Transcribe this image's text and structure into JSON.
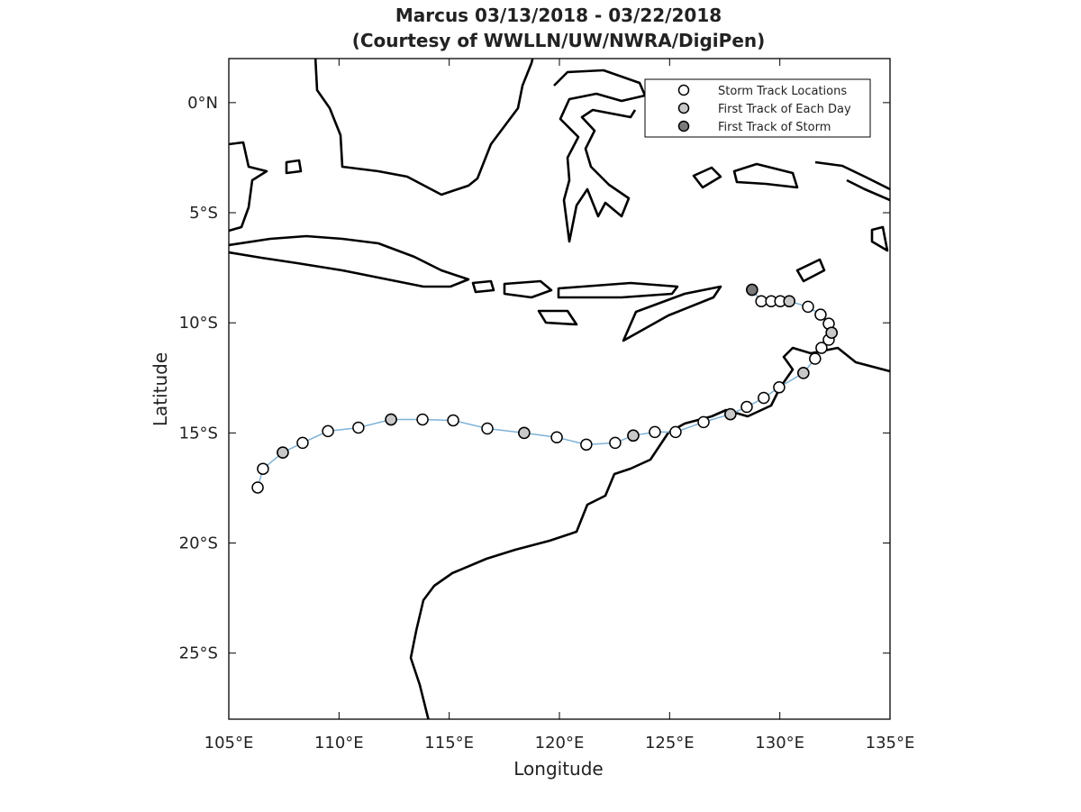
{
  "chart_data": {
    "type": "line",
    "title": "Marcus 03/13/2018 - 03/22/2018",
    "subtitle": "(Courtesy of WWLLN/UW/NWRA/DigiPen)",
    "x_label": "Longitude",
    "y_label": "Latitude",
    "xlim": [
      105,
      135
    ],
    "ylim": [
      -28,
      2
    ],
    "xticks": [
      {
        "value": 105,
        "label": "105°E"
      },
      {
        "value": 110,
        "label": "110°E"
      },
      {
        "value": 115,
        "label": "115°E"
      },
      {
        "value": 120,
        "label": "120°E"
      },
      {
        "value": 125,
        "label": "125°E"
      },
      {
        "value": 130,
        "label": "130°E"
      },
      {
        "value": 135,
        "label": "135°E"
      }
    ],
    "yticks": [
      {
        "value": 0,
        "label": "0°N"
      },
      {
        "value": -5,
        "label": "5°S"
      },
      {
        "value": -10,
        "label": "10°S"
      },
      {
        "value": -15,
        "label": "15°S"
      },
      {
        "value": -20,
        "label": "20°S"
      },
      {
        "value": -25,
        "label": "25°S"
      }
    ],
    "track_color": "#7fb2d5",
    "series": [
      {
        "name": "Storm Track Locations",
        "color": "#ffffff",
        "x": [
          128.74,
          129.16,
          129.61,
          130.02,
          130.43,
          131.28,
          131.85,
          132.22,
          132.35,
          132.22,
          131.89,
          131.6,
          131.07,
          129.97,
          129.27,
          128.5,
          127.76,
          126.54,
          125.27,
          124.33,
          123.35,
          122.53,
          121.22,
          119.88,
          118.4,
          116.73,
          115.18,
          113.79,
          112.36,
          110.88,
          109.5,
          108.35,
          107.45,
          106.55,
          106.31
        ],
        "values": [
          -8.5,
          -9.02,
          -9.02,
          -9.02,
          -9.02,
          -9.27,
          -9.63,
          -10.04,
          -10.45,
          -10.77,
          -11.14,
          -11.63,
          -12.28,
          -12.93,
          -13.41,
          -13.82,
          -14.15,
          -14.51,
          -14.96,
          -14.96,
          -15.12,
          -15.45,
          -15.53,
          -15.2,
          -15.0,
          -14.8,
          -14.43,
          -14.39,
          -14.39,
          -14.76,
          -14.92,
          -15.45,
          -15.89,
          -16.63,
          -17.48
        ]
      },
      {
        "name": "First Track of Each Day",
        "color": "#c8c8c8",
        "x": [
          130.43,
          132.35,
          131.07,
          127.76,
          123.35,
          118.4,
          112.36,
          107.45
        ],
        "values": [
          -9.02,
          -10.45,
          -12.28,
          -14.15,
          -15.12,
          -15.0,
          -14.39,
          -15.89
        ]
      },
      {
        "name": "First Track of Storm",
        "color": "#7a7a7a",
        "x": [
          128.74
        ],
        "values": [
          -8.5
        ]
      }
    ]
  }
}
